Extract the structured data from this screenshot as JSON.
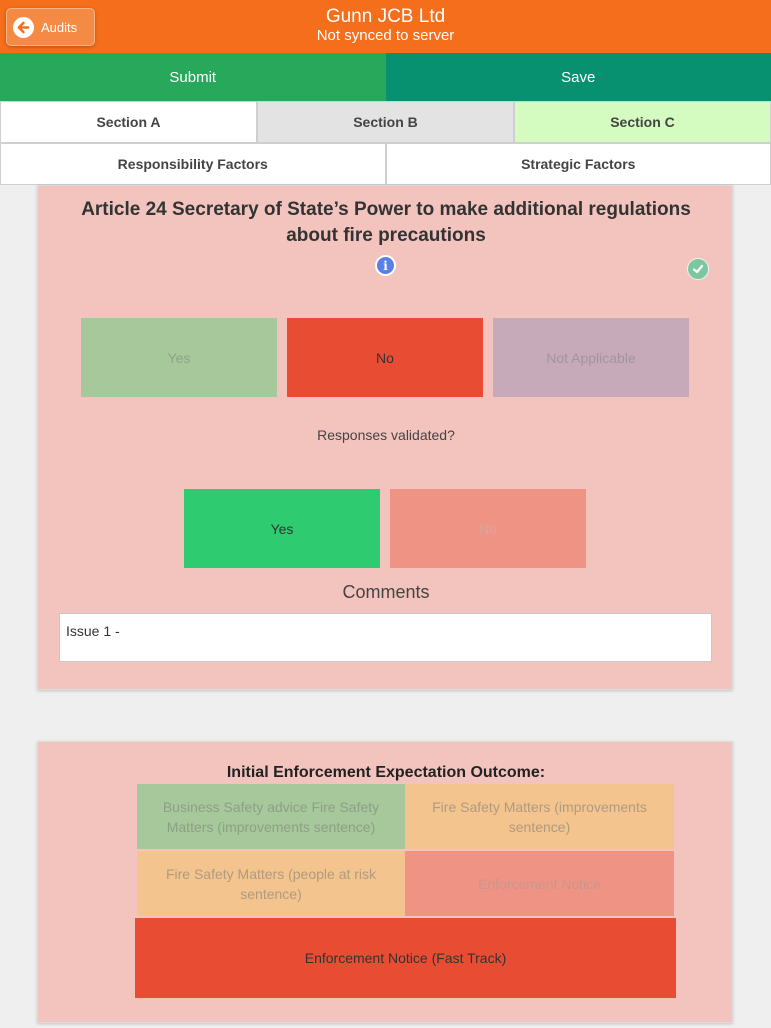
{
  "header": {
    "title": "Gunn JCB Ltd",
    "subtitle": "Not synced to server",
    "back_label": "Audits"
  },
  "actions": {
    "submit_label": "Submit",
    "save_label": "Save"
  },
  "tabs": [
    {
      "label": "Section A"
    },
    {
      "label": "Section B"
    },
    {
      "label": "Section C"
    }
  ],
  "subtabs": [
    {
      "label": "Responsibility Factors"
    },
    {
      "label": "Strategic Factors"
    }
  ],
  "question": {
    "title": "Article 24 Secretary of State’s Power to make additional regulations about fire precautions",
    "info_icon": "i",
    "options": [
      {
        "label": "Yes"
      },
      {
        "label": "No"
      },
      {
        "label": "Not Applicable"
      }
    ],
    "validated_label": "Responses validated?",
    "validated_options": [
      {
        "label": "Yes"
      },
      {
        "label": "No"
      }
    ],
    "comments_label": "Comments",
    "comments_value": "Issue 1 -"
  },
  "outcome": {
    "title": "Initial Enforcement Expectation Outcome:",
    "options": [
      {
        "label": "Business Safety advice Fire Safety Matters (improvements sentence)"
      },
      {
        "label": "Fire Safety Matters (improvements sentence)"
      },
      {
        "label": "Fire Safety Matters (people at risk sentence)"
      },
      {
        "label": "Enforcement Notice"
      },
      {
        "label": "Enforcement Notice (Fast Track)"
      }
    ]
  },
  "colors": {
    "header": "#f46e1b",
    "submit": "#27a85b",
    "save": "#079170",
    "selected_no": "#e84d34",
    "selected_yes": "#2fcb70",
    "card_bg": "#f3c4bd"
  }
}
